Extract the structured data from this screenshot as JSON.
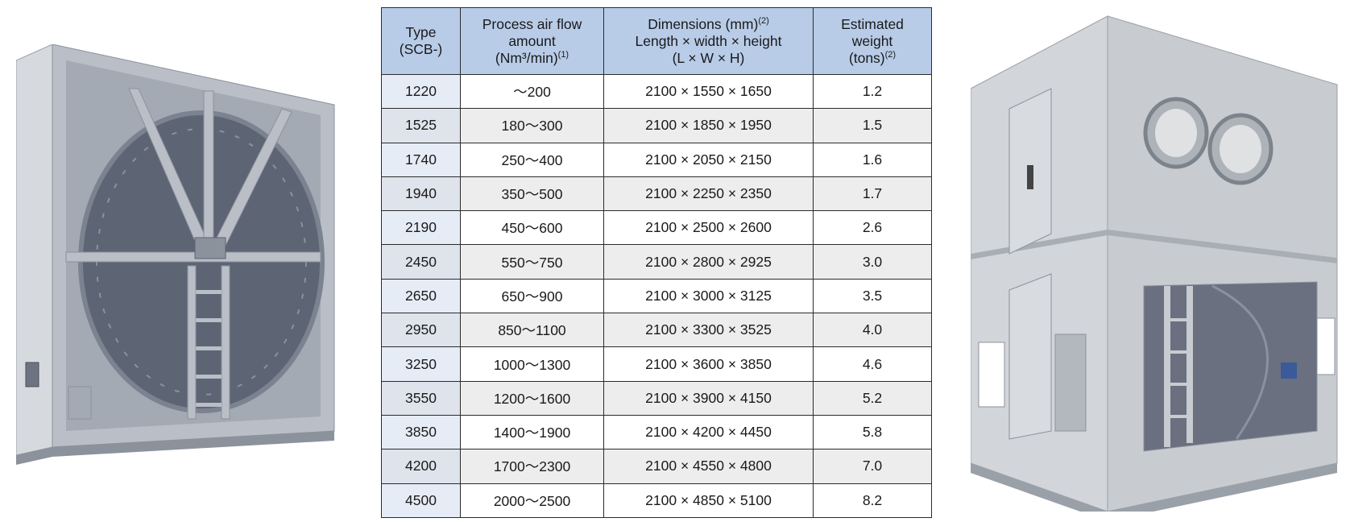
{
  "table": {
    "headers": [
      {
        "lines": [
          "Type",
          "(SCB-)"
        ],
        "sup": ""
      },
      {
        "lines": [
          "Process air flow",
          "amount",
          "(Nm³/min)"
        ],
        "sup": "(1)"
      },
      {
        "lines": [
          "Dimensions (mm)",
          "Length × width × height",
          "(L × W × H)"
        ],
        "sup": "(2)"
      },
      {
        "lines": [
          "Estimated",
          "weight",
          "(tons)"
        ],
        "sup": "(2)"
      }
    ],
    "rows": [
      {
        "type": "1220",
        "flow": "～200",
        "dims": "2100 × 1550 × 1650",
        "weight": "1.2"
      },
      {
        "type": "1525",
        "flow": "180～300",
        "dims": "2100 × 1850 × 1950",
        "weight": "1.5"
      },
      {
        "type": "1740",
        "flow": "250～400",
        "dims": "2100 × 2050 × 2150",
        "weight": "1.6"
      },
      {
        "type": "1940",
        "flow": "350～500",
        "dims": "2100 × 2250 × 2350",
        "weight": "1.7"
      },
      {
        "type": "2190",
        "flow": "450～600",
        "dims": "2100 × 2500 × 2600",
        "weight": "2.6"
      },
      {
        "type": "2450",
        "flow": "550～750",
        "dims": "2100 × 2800 × 2925",
        "weight": "3.0"
      },
      {
        "type": "2650",
        "flow": "650～900",
        "dims": "2100 × 3000 × 3125",
        "weight": "3.5"
      },
      {
        "type": "2950",
        "flow": "850～1100",
        "dims": "2100 × 3300 × 3525",
        "weight": "4.0"
      },
      {
        "type": "3250",
        "flow": "1000～1300",
        "dims": "2100 × 3600 × 3850",
        "weight": "4.6"
      },
      {
        "type": "3550",
        "flow": "1200～1600",
        "dims": "2100 × 3900 × 4150",
        "weight": "5.2"
      },
      {
        "type": "3850",
        "flow": "1400～1900",
        "dims": "2100 × 4200 × 4450",
        "weight": "5.8"
      },
      {
        "type": "4200",
        "flow": "1700～2300",
        "dims": "2100 × 4550 × 4800",
        "weight": "7.0"
      },
      {
        "type": "4500",
        "flow": "2000～2500",
        "dims": "2100 × 4850 × 5100",
        "weight": "8.2"
      }
    ]
  },
  "images": {
    "left": {
      "icon": "rotor-dehumidifier-unit-photo",
      "frame_color": "#b9bec7",
      "wheel_color": "#5d6474"
    },
    "right": {
      "icon": "enclosed-dehumidifier-unit-photo",
      "body_color": "#c8ccd0"
    }
  }
}
